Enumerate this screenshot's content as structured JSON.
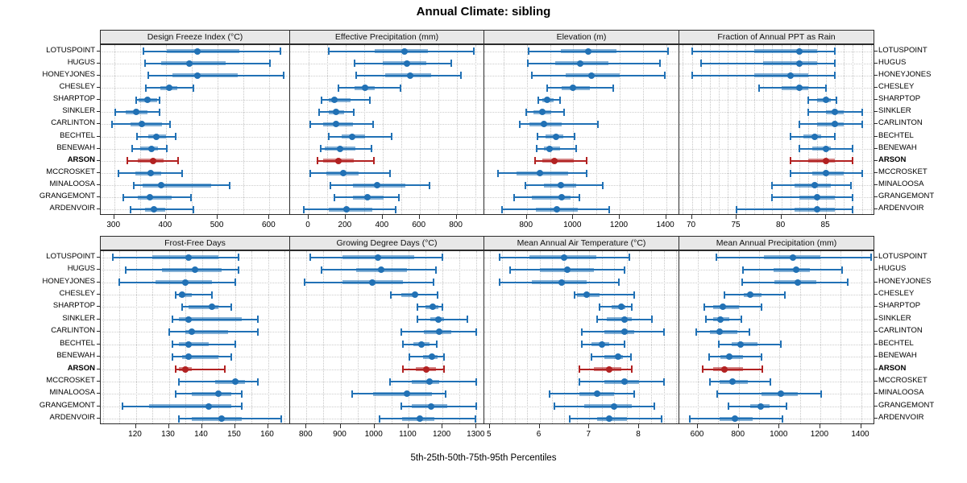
{
  "title": "Annual Climate: sibling",
  "xlabel": "5th-25th-50th-75th-95th Percentiles",
  "sites": [
    "LOTUSPOINT",
    "HUGUS",
    "HONEYJONES",
    "CHESLEY",
    "SHARPTOP",
    "SINKLER",
    "CARLINTON",
    "BECHTEL",
    "BENEWAH",
    "ARSON",
    "MCCROSKET",
    "MINALOOSA",
    "GRANGEMONT",
    "ARDENVOIR"
  ],
  "highlight_site": "ARSON",
  "colors": {
    "normal": "#2171b5",
    "highlight": "#b22222",
    "strip_bg": "#e8e8e8",
    "grid": "#c9c9c9",
    "border": "#2b2b2b"
  },
  "chart_data": [
    {
      "type": "dotplot-interval",
      "title": "Design Freeze Index (°C)",
      "xlim": [
        274,
        640
      ],
      "ticks": [
        300,
        400,
        500,
        600
      ],
      "grid_start": 300,
      "grid_step": 50,
      "grid_end": 600,
      "percentile_labels": [
        "5th",
        "25th",
        "50th",
        "75th",
        "95th"
      ],
      "values": [
        [
          356,
          402,
          461,
          542,
          622
        ],
        [
          359,
          390,
          446,
          515,
          601
        ],
        [
          366,
          413,
          461,
          539,
          627
        ],
        [
          361,
          389,
          407,
          422,
          453
        ],
        [
          343,
          347,
          364,
          383,
          388
        ],
        [
          302,
          322,
          343,
          364,
          387
        ],
        [
          296,
          331,
          354,
          392,
          408
        ],
        [
          344,
          366,
          381,
          400,
          418
        ],
        [
          335,
          351,
          372,
          385,
          401
        ],
        [
          325,
          346,
          375,
          395,
          424
        ],
        [
          308,
          341,
          370,
          390,
          432
        ],
        [
          338,
          355,
          390,
          487,
          523
        ],
        [
          317,
          346,
          369,
          411,
          448
        ],
        [
          332,
          359,
          377,
          398,
          453
        ]
      ]
    },
    {
      "type": "dotplot-interval",
      "title": "Effective Precipitation (mm)",
      "xlim": [
        -100,
        950
      ],
      "ticks": [
        0,
        200,
        400,
        600,
        800
      ],
      "grid_start": 0,
      "grid_step": 100,
      "grid_end": 900,
      "percentile_labels": [
        "5th",
        "25th",
        "50th",
        "75th",
        "95th"
      ],
      "values": [
        [
          107,
          358,
          520,
          645,
          894
        ],
        [
          249,
          401,
          532,
          636,
          771
        ],
        [
          257,
          416,
          549,
          662,
          822
        ],
        [
          162,
          249,
          303,
          358,
          496
        ],
        [
          70,
          107,
          140,
          225,
          330
        ],
        [
          55,
          107,
          150,
          190,
          245
        ],
        [
          10,
          80,
          150,
          240,
          350
        ],
        [
          110,
          177,
          235,
          307,
          448
        ],
        [
          65,
          86,
          172,
          252,
          340
        ],
        [
          49,
          80,
          162,
          245,
          355
        ],
        [
          10,
          94,
          187,
          271,
          442
        ],
        [
          119,
          239,
          370,
          525,
          652
        ],
        [
          138,
          239,
          317,
          406,
          488
        ],
        [
          -25,
          109,
          206,
          346,
          471
        ]
      ]
    },
    {
      "type": "dotplot-interval",
      "title": "Elevation (m)",
      "xlim": [
        617,
        1457
      ],
      "ticks": [
        800,
        1000,
        1200,
        1400
      ],
      "grid_start": 700,
      "grid_step": 100,
      "grid_end": 1400,
      "percentile_labels": [
        "5th",
        "25th",
        "50th",
        "75th",
        "95th"
      ],
      "values": [
        [
          806,
          945,
          1066,
          1187,
          1407
        ],
        [
          803,
          924,
          1031,
          1153,
          1375
        ],
        [
          820,
          968,
          1077,
          1199,
          1393
        ],
        [
          889,
          950,
          997,
          1072,
          1173
        ],
        [
          850,
          866,
          887,
          915,
          942
        ],
        [
          797,
          829,
          866,
          904,
          962
        ],
        [
          770,
          812,
          873,
          950,
          1106
        ],
        [
          846,
          881,
          927,
          956,
          1006
        ],
        [
          843,
          873,
          898,
          944,
          1012
        ],
        [
          835,
          867,
          919,
          1002,
          1058
        ],
        [
          676,
          757,
          858,
          979,
          1058
        ],
        [
          794,
          873,
          948,
          1014,
          1126
        ],
        [
          746,
          823,
          950,
          988,
          1028
        ],
        [
          692,
          838,
          930,
          1020,
          1155
        ]
      ]
    },
    {
      "type": "dotplot-interval",
      "title": "Fraction of Annual PPT as Rain",
      "xlim": [
        68.6,
        90.4
      ],
      "ticks": [
        70,
        75,
        80,
        85
      ],
      "grid_start": 69,
      "grid_step": 1,
      "grid_end": 90,
      "percentile_labels": [
        "5th",
        "25th",
        "50th",
        "75th",
        "95th"
      ],
      "values": [
        [
          70,
          77,
          82,
          84,
          86
        ],
        [
          71,
          78,
          82,
          84,
          86
        ],
        [
          70,
          77,
          81,
          83,
          86
        ],
        [
          77.5,
          80,
          82,
          83,
          85
        ],
        [
          83,
          84,
          85,
          85.5,
          86.2
        ],
        [
          83,
          85,
          86,
          87,
          89
        ],
        [
          82,
          84,
          86,
          87,
          89
        ],
        [
          81,
          82.5,
          83.7,
          84.5,
          86
        ],
        [
          82,
          83.5,
          85,
          85.5,
          88
        ],
        [
          81,
          83,
          85,
          86,
          88
        ],
        [
          81,
          83.5,
          85,
          87,
          89
        ],
        [
          79,
          81.5,
          83.7,
          85.5,
          87.8
        ],
        [
          79,
          82,
          84,
          86,
          88
        ],
        [
          75,
          81.5,
          84,
          86,
          88
        ]
      ]
    },
    {
      "type": "dotplot-interval",
      "title": "Frost-Free Days",
      "xlim": [
        109.4,
        166.7
      ],
      "ticks": [
        120,
        130,
        140,
        150,
        160
      ],
      "grid_start": 110,
      "grid_step": 5,
      "grid_end": 165,
      "percentile_labels": [
        "5th",
        "25th",
        "50th",
        "75th",
        "95th"
      ],
      "values": [
        [
          113,
          125,
          136,
          145,
          151
        ],
        [
          117,
          128,
          138,
          146,
          151
        ],
        [
          115,
          126,
          135,
          143,
          150
        ],
        [
          132,
          133,
          134,
          137,
          143
        ],
        [
          134,
          136,
          143,
          145,
          149
        ],
        [
          131,
          133,
          136,
          152,
          157
        ],
        [
          130,
          135,
          137,
          148,
          157
        ],
        [
          131,
          133,
          136,
          142,
          150
        ],
        [
          131,
          134,
          136,
          145,
          149
        ],
        [
          132,
          133,
          135,
          137,
          147
        ],
        [
          133,
          144,
          150,
          153,
          157
        ],
        [
          132,
          137,
          145,
          149,
          152
        ],
        [
          116,
          124,
          142,
          149,
          152
        ],
        [
          133,
          137,
          146,
          152,
          164
        ]
      ]
    },
    {
      "type": "dotplot-interval",
      "title": "Growing Degree Days (°C)",
      "xlim": [
        752,
        1323
      ],
      "ticks": [
        800,
        900,
        1000,
        1100,
        1200,
        1300
      ],
      "grid_start": 800,
      "grid_step": 50,
      "grid_end": 1300,
      "percentile_labels": [
        "5th",
        "25th",
        "50th",
        "75th",
        "95th"
      ],
      "values": [
        [
          810,
          905,
          1010,
          1118,
          1200
        ],
        [
          845,
          945,
          1020,
          1095,
          1180
        ],
        [
          795,
          907,
          994,
          1084,
          1174
        ],
        [
          1047,
          1080,
          1118,
          1126,
          1185
        ],
        [
          1126,
          1150,
          1171,
          1187,
          1200
        ],
        [
          1126,
          1163,
          1187,
          1205,
          1274
        ],
        [
          1080,
          1145,
          1190,
          1227,
          1300
        ],
        [
          1084,
          1114,
          1137,
          1161,
          1182
        ],
        [
          1103,
          1142,
          1169,
          1185,
          1205
        ],
        [
          1084,
          1121,
          1153,
          1182,
          1205
        ],
        [
          1045,
          1110,
          1161,
          1190,
          1300
        ],
        [
          935,
          997,
          1095,
          1169,
          1208
        ],
        [
          1079,
          1110,
          1166,
          1213,
          1300
        ],
        [
          1016,
          1082,
          1134,
          1177,
          1297
        ]
      ]
    },
    {
      "type": "dotplot-interval",
      "title": "Mean Annual Air Temperature (°C)",
      "xlim": [
        4.89,
        8.81
      ],
      "ticks": [
        5,
        6,
        7,
        8
      ],
      "grid_start": 5,
      "grid_step": 0.25,
      "grid_end": 8.75,
      "percentile_labels": [
        "5th",
        "25th",
        "50th",
        "75th",
        "95th"
      ],
      "values": [
        [
          5.2,
          5.8,
          6.5,
          7.15,
          7.8
        ],
        [
          5.4,
          6.0,
          6.55,
          7.1,
          7.7
        ],
        [
          5.2,
          5.85,
          6.45,
          6.95,
          7.6
        ],
        [
          6.7,
          6.75,
          6.95,
          7.2,
          7.9
        ],
        [
          7.2,
          7.45,
          7.65,
          7.72,
          7.85
        ],
        [
          7.15,
          7.35,
          7.7,
          7.85,
          8.26
        ],
        [
          6.85,
          7.3,
          7.7,
          7.9,
          8.5
        ],
        [
          6.85,
          7.05,
          7.25,
          7.4,
          7.7
        ],
        [
          7.05,
          7.3,
          7.58,
          7.67,
          7.83
        ],
        [
          6.8,
          7.1,
          7.4,
          7.65,
          7.85
        ],
        [
          6.8,
          7.3,
          7.7,
          8.0,
          8.5
        ],
        [
          6.2,
          6.8,
          7.15,
          7.5,
          7.9
        ],
        [
          6.3,
          6.9,
          7.5,
          7.85,
          8.3
        ],
        [
          6.6,
          7.15,
          7.4,
          7.75,
          8.45
        ]
      ]
    },
    {
      "type": "dotplot-interval",
      "title": "Mean Annual Precipitation (mm)",
      "xlim": [
        509,
        1465
      ],
      "ticks": [
        600,
        800,
        1000,
        1200,
        1400
      ],
      "grid_start": 600,
      "grid_step": 100,
      "grid_end": 1400,
      "percentile_labels": [
        "5th",
        "25th",
        "50th",
        "75th",
        "95th"
      ],
      "values": [
        [
          690,
          925,
          1065,
          1200,
          1450
        ],
        [
          820,
          970,
          1080,
          1150,
          1305
        ],
        [
          815,
          975,
          1090,
          1180,
          1335
        ],
        [
          730,
          825,
          855,
          910,
          1025
        ],
        [
          630,
          675,
          722,
          800,
          910
        ],
        [
          640,
          675,
          712,
          752,
          813
        ],
        [
          592,
          658,
          707,
          792,
          853
        ],
        [
          703,
          765,
          810,
          893,
          1005
        ],
        [
          653,
          712,
          752,
          820,
          912
        ],
        [
          623,
          676,
          730,
          823,
          916
        ],
        [
          659,
          707,
          770,
          845,
          956
        ],
        [
          695,
          910,
          1005,
          1090,
          1205
        ],
        [
          750,
          855,
          907,
          950,
          1036
        ],
        [
          560,
          707,
          783,
          867,
          1013
        ]
      ]
    }
  ]
}
